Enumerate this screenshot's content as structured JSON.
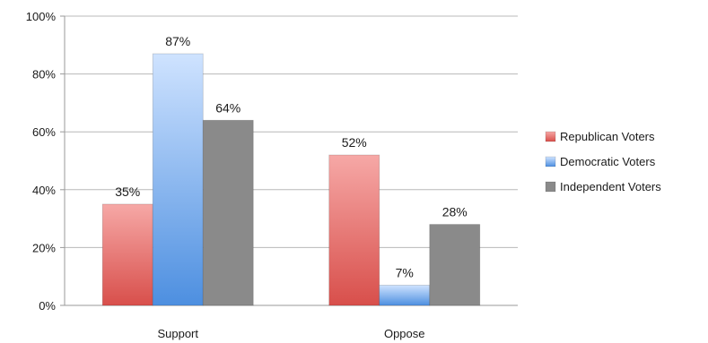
{
  "chart_data": {
    "type": "bar",
    "title": "",
    "xlabel": "",
    "ylabel": "",
    "categories": [
      "Support",
      "Oppose"
    ],
    "series": [
      {
        "name": "Republican Voters",
        "values": [
          35,
          52
        ],
        "labels": [
          "35%",
          "52%"
        ],
        "color_light": "#f6a8a6",
        "color_dark": "#d84f4b"
      },
      {
        "name": "Democratic Voters",
        "values": [
          87,
          7
        ],
        "labels": [
          "87%",
          "7%"
        ],
        "color_light": "#cfe3ff",
        "color_dark": "#4d8fe0"
      },
      {
        "name": "Independent Voters",
        "values": [
          64,
          28
        ],
        "labels": [
          "64%",
          "28%"
        ],
        "color_light": "#8a8a8a",
        "color_dark": "#8a8a8a"
      }
    ],
    "ylim": [
      0,
      100
    ],
    "yticks": [
      "0%",
      "20%",
      "40%",
      "60%",
      "80%",
      "100%"
    ],
    "grid": true,
    "legend_position": "right"
  }
}
